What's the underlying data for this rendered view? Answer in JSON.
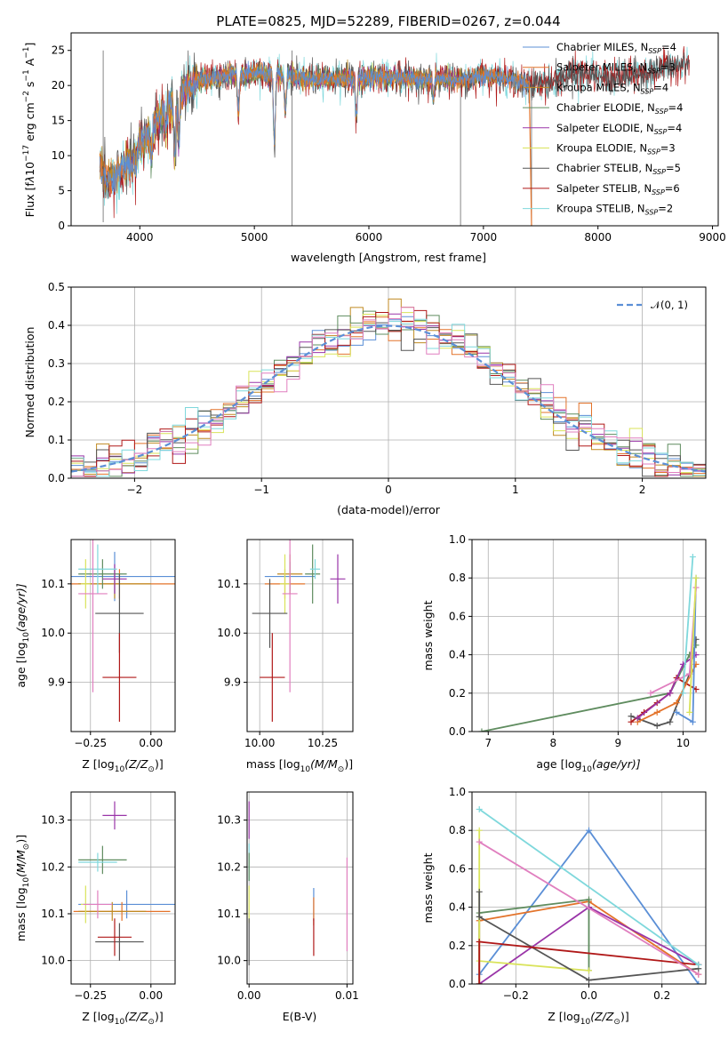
{
  "figure_title": "PLATE=0825, MJD=52289, FIBERID=0267, z=0.044",
  "colors": {
    "chabrier_miles": "#5b8fd6",
    "salpeter_miles": "#e3732a",
    "kroupa_miles": "#c08a22",
    "chabrier_elodie": "#5f8c5f",
    "salpeter_elodie": "#9a35a8",
    "kroupa_elodie": "#d9e35a",
    "chabrier_stelib": "#555555",
    "salpeter_stelib": "#b01818",
    "kroupa_stelib": "#7fd8dc",
    "pink": "#e07fbf",
    "normal_curve": "#5b8fd6"
  },
  "chart_data": [
    {
      "type": "line",
      "panel": "spectrum",
      "title": "PLATE=0825, MJD=52289, FIBERID=0267, z=0.044",
      "xlabel": "wavelength [Angstrom, rest frame]",
      "ylabel_parts": [
        "Flux [f",
        "λ",
        "10",
        "−17",
        " erg cm",
        "−2",
        " s",
        "−1",
        " A",
        "−1",
        "]"
      ],
      "xlim": [
        3400,
        9050
      ],
      "ylim": [
        0,
        27.5
      ],
      "xticks": [
        4000,
        5000,
        6000,
        7000,
        8000,
        9000
      ],
      "yticks": [
        0,
        5,
        10,
        15,
        20,
        25
      ],
      "grid": false,
      "legend_position": "top-right",
      "envelope_x": [
        3650,
        3700,
        3800,
        3900,
        4000,
        4100,
        4200,
        4300,
        4400,
        4500,
        4600,
        4800,
        5000,
        5200,
        5400,
        5600,
        5800,
        6000,
        6200,
        6400,
        6600,
        6800,
        7000,
        7200,
        7400,
        7600,
        7800,
        8000,
        8200,
        8400,
        8600,
        8800
      ],
      "envelope_y": [
        9,
        6.5,
        7,
        9,
        11.5,
        13.5,
        16,
        17.5,
        19.5,
        20.5,
        21,
        21.5,
        21.8,
        21.5,
        21,
        20.8,
        21,
        21.2,
        21.2,
        21,
        21,
        20.8,
        21.5,
        21,
        20.3,
        20.5,
        22,
        21.2,
        21,
        21.8,
        22.5,
        23.2
      ],
      "absorption_lines": [
        [
          3933,
          8
        ],
        [
          3968,
          8.5
        ],
        [
          4102,
          10
        ],
        [
          4227,
          14
        ],
        [
          4305,
          10
        ],
        [
          4340,
          12
        ],
        [
          4861,
          16
        ],
        [
          5175,
          12
        ],
        [
          5270,
          16
        ],
        [
          5890,
          15.5
        ],
        [
          6563,
          18
        ]
      ],
      "glitches": [
        [
          3680,
          25,
          0.5
        ],
        [
          5330,
          0,
          25
        ],
        [
          6800,
          0,
          20
        ],
        [
          7420,
          0,
          18
        ]
      ],
      "series": [
        {
          "name": "Chabrier MILES",
          "nssp": "4",
          "color": "#5b8fd6",
          "xmin": 3650,
          "xmax": 7400
        },
        {
          "name": "Salpeter MILES",
          "nssp": "3",
          "color": "#e3732a",
          "xmin": 3650,
          "xmax": 7400
        },
        {
          "name": "Kroupa MILES",
          "nssp": "4",
          "color": "#c08a22",
          "xmin": 3650,
          "xmax": 7400
        },
        {
          "name": "Chabrier ELODIE",
          "nssp": "4",
          "color": "#5f8c5f",
          "xmin": 3900,
          "xmax": 6800
        },
        {
          "name": "Salpeter ELODIE",
          "nssp": "4",
          "color": "#9a35a8",
          "xmin": 3900,
          "xmax": 6800
        },
        {
          "name": "Kroupa ELODIE",
          "nssp": "3",
          "color": "#d9e35a",
          "xmin": 3900,
          "xmax": 6800
        },
        {
          "name": "Chabrier STELIB",
          "nssp": "5",
          "color": "#555555",
          "xmin": 3650,
          "xmax": 8800
        },
        {
          "name": "Salpeter STELIB",
          "nssp": "6",
          "color": "#b01818",
          "xmin": 3650,
          "xmax": 8800
        },
        {
          "name": "Kroupa STELIB",
          "nssp": "2",
          "color": "#7fd8dc",
          "xmin": 3650,
          "xmax": 8800
        }
      ]
    },
    {
      "type": "histogram",
      "panel": "residuals",
      "xlabel": "(data-model)/error",
      "ylabel": "Normed distribution",
      "xlim": [
        -2.5,
        2.5
      ],
      "ylim": [
        0,
        0.5
      ],
      "xticks": [
        -2,
        -1,
        0,
        1,
        2
      ],
      "yticks": [
        0.0,
        0.1,
        0.2,
        0.3,
        0.4,
        0.5
      ],
      "grid": true,
      "legend_position": "top-right",
      "legend_label": "𝒩(0, 1)",
      "bin_width": 0.1,
      "series_colors": [
        "#5b8fd6",
        "#e3732a",
        "#c08a22",
        "#5f8c5f",
        "#9a35a8",
        "#d9e35a",
        "#555555",
        "#b01818",
        "#7fd8dc",
        "#e07fbf"
      ]
    },
    {
      "type": "scatter",
      "panel": "age_vs_z",
      "xlabel_parts": [
        "Z [log",
        "10",
        "(Z/Z",
        "⊙",
        ")]"
      ],
      "ylabel_parts": [
        "age  [log",
        "10",
        "(age/yr)]"
      ],
      "xlim": [
        -0.33,
        0.1
      ],
      "ylim": [
        9.8,
        10.19
      ],
      "xticks": [
        -0.25,
        0.0
      ],
      "yticks": [
        9.9,
        10.0,
        10.1
      ],
      "grid": true,
      "points": [
        {
          "x": -0.15,
          "y": 10.115,
          "xerr": 0.25,
          "yerr": 0.05,
          "color": "#5b8fd6"
        },
        {
          "x": -0.13,
          "y": 10.1,
          "xerr": 0.23,
          "yerr": 0.03,
          "color": "#e3732a"
        },
        {
          "x": -0.15,
          "y": 10.1,
          "xerr": 0.15,
          "yerr": 0.03,
          "color": "#c08a22"
        },
        {
          "x": -0.2,
          "y": 10.12,
          "xerr": 0.1,
          "yerr": 0.03,
          "color": "#5f8c5f"
        },
        {
          "x": -0.15,
          "y": 10.11,
          "xerr": 0.05,
          "yerr": 0.03,
          "color": "#9a35a8"
        },
        {
          "x": -0.27,
          "y": 10.1,
          "xerr": 0.02,
          "yerr": 0.05,
          "color": "#d9e35a"
        },
        {
          "x": -0.13,
          "y": 10.04,
          "xerr": 0.1,
          "yerr": 0.08,
          "color": "#555555"
        },
        {
          "x": -0.13,
          "y": 9.91,
          "xerr": 0.07,
          "yerr": 0.09,
          "color": "#b01818"
        },
        {
          "x": -0.22,
          "y": 10.13,
          "xerr": 0.08,
          "yerr": 0.05,
          "color": "#7fd8dc"
        },
        {
          "x": -0.24,
          "y": 10.08,
          "xerr": 0.06,
          "yerr": 0.2,
          "color": "#e07fbf"
        }
      ]
    },
    {
      "type": "scatter",
      "panel": "age_vs_mass",
      "xlabel_parts": [
        "mass [log",
        "10",
        "(M/M",
        "⊙",
        ")]"
      ],
      "xlim": [
        9.95,
        10.37
      ],
      "ylim": [
        9.8,
        10.19
      ],
      "xticks": [
        10.0,
        10.25
      ],
      "yticks": [
        9.9,
        10.0,
        10.1
      ],
      "grid": true,
      "points": [
        {
          "x": 10.12,
          "y": 10.115,
          "xerr": 0.1,
          "yerr": 0.03,
          "color": "#5b8fd6"
        },
        {
          "x": 10.1,
          "y": 10.1,
          "xerr": 0.08,
          "yerr": 0.03,
          "color": "#e3732a"
        },
        {
          "x": 10.12,
          "y": 10.12,
          "xerr": 0.05,
          "yerr": 0.04,
          "color": "#c08a22"
        },
        {
          "x": 10.21,
          "y": 10.12,
          "xerr": 0.03,
          "yerr": 0.06,
          "color": "#5f8c5f"
        },
        {
          "x": 10.31,
          "y": 10.11,
          "xerr": 0.03,
          "yerr": 0.05,
          "color": "#9a35a8"
        },
        {
          "x": 10.1,
          "y": 10.1,
          "xerr": 0.02,
          "yerr": 0.06,
          "color": "#d9e35a"
        },
        {
          "x": 10.04,
          "y": 10.04,
          "xerr": 0.07,
          "yerr": 0.07,
          "color": "#555555"
        },
        {
          "x": 10.05,
          "y": 9.91,
          "xerr": 0.05,
          "yerr": 0.09,
          "color": "#b01818"
        },
        {
          "x": 10.22,
          "y": 10.13,
          "xerr": 0.02,
          "yerr": 0.02,
          "color": "#7fd8dc"
        },
        {
          "x": 10.12,
          "y": 10.08,
          "xerr": 0.03,
          "yerr": 0.2,
          "color": "#e07fbf"
        }
      ]
    },
    {
      "type": "line",
      "panel": "mass_weight_vs_age",
      "xlabel_parts": [
        "age  [log",
        "10",
        "(age/yr)]"
      ],
      "ylabel": "mass weight",
      "xlim": [
        6.75,
        10.35
      ],
      "ylim": [
        0,
        1.0
      ],
      "xticks": [
        7,
        8,
        9,
        10
      ],
      "yticks": [
        0.0,
        0.2,
        0.4,
        0.6,
        0.8,
        1.0
      ],
      "grid": true,
      "series": [
        {
          "color": "#5f8c5f",
          "x": [
            6.9,
            9.8,
            10.1,
            10.2
          ],
          "y": [
            0.0,
            0.2,
            0.4,
            0.45
          ]
        },
        {
          "color": "#b01818",
          "x": [
            9.2,
            9.4,
            9.6,
            9.8,
            9.9,
            10.2
          ],
          "y": [
            0.05,
            0.1,
            0.15,
            0.2,
            0.28,
            0.22
          ]
        },
        {
          "color": "#555555",
          "x": [
            9.2,
            9.6,
            9.8,
            10.1,
            10.2
          ],
          "y": [
            0.08,
            0.03,
            0.05,
            0.3,
            0.48
          ]
        },
        {
          "color": "#e3732a",
          "x": [
            9.3,
            9.6,
            9.9,
            10.2
          ],
          "y": [
            0.05,
            0.1,
            0.15,
            0.35
          ]
        },
        {
          "color": "#9a35a8",
          "x": [
            9.3,
            9.8,
            10.0,
            10.2
          ],
          "y": [
            0.07,
            0.2,
            0.35,
            0.4
          ]
        },
        {
          "color": "#5b8fd6",
          "x": [
            9.9,
            10.15,
            10.2
          ],
          "y": [
            0.1,
            0.05,
            0.8
          ]
        },
        {
          "color": "#e07fbf",
          "x": [
            9.5,
            10.1,
            10.2
          ],
          "y": [
            0.2,
            0.3,
            0.75
          ]
        },
        {
          "color": "#d9e35a",
          "x": [
            10.1,
            10.2
          ],
          "y": [
            0.1,
            0.8
          ]
        },
        {
          "color": "#7fd8dc",
          "x": [
            10.0,
            10.15
          ],
          "y": [
            0.2,
            0.91
          ]
        }
      ]
    },
    {
      "type": "scatter",
      "panel": "mass_vs_z",
      "xlabel_parts": [
        "Z [log",
        "10",
        "(Z/Z",
        "⊙",
        ")]"
      ],
      "ylabel_parts": [
        "mass [log",
        "10",
        "(M/M",
        "⊙",
        ")]"
      ],
      "xlim": [
        -0.33,
        0.1
      ],
      "ylim": [
        9.95,
        10.36
      ],
      "xticks": [
        -0.25,
        0.0
      ],
      "yticks": [
        10.0,
        10.1,
        10.2,
        10.3
      ],
      "grid": true,
      "points": [
        {
          "x": -0.1,
          "y": 10.12,
          "xerr": 0.2,
          "yerr": 0.03,
          "color": "#5b8fd6"
        },
        {
          "x": -0.12,
          "y": 10.105,
          "xerr": 0.2,
          "yerr": 0.02,
          "color": "#e3732a"
        },
        {
          "x": -0.16,
          "y": 10.105,
          "xerr": 0.14,
          "yerr": 0.02,
          "color": "#c08a22"
        },
        {
          "x": -0.2,
          "y": 10.215,
          "xerr": 0.1,
          "yerr": 0.03,
          "color": "#5f8c5f"
        },
        {
          "x": -0.15,
          "y": 10.31,
          "xerr": 0.05,
          "yerr": 0.03,
          "color": "#9a35a8"
        },
        {
          "x": -0.27,
          "y": 10.12,
          "xerr": 0.02,
          "yerr": 0.04,
          "color": "#d9e35a"
        },
        {
          "x": -0.13,
          "y": 10.04,
          "xerr": 0.1,
          "yerr": 0.04,
          "color": "#555555"
        },
        {
          "x": -0.15,
          "y": 10.05,
          "xerr": 0.07,
          "yerr": 0.04,
          "color": "#b01818"
        },
        {
          "x": -0.22,
          "y": 10.21,
          "xerr": 0.08,
          "yerr": 0.02,
          "color": "#7fd8dc"
        },
        {
          "x": -0.22,
          "y": 10.12,
          "xerr": 0.06,
          "yerr": 0.03,
          "color": "#e07fbf"
        }
      ]
    },
    {
      "type": "scatter",
      "panel": "mass_vs_ebv",
      "xlabel": "E(B-V)",
      "xlim": [
        -0.0002,
        0.0106
      ],
      "ylim": [
        9.95,
        10.36
      ],
      "xticks": [
        0.0,
        0.01
      ],
      "xticklabels": [
        "0.00",
        "0.01"
      ],
      "yticks": [
        10.0,
        10.1,
        10.2,
        10.3
      ],
      "grid": true,
      "points": [
        {
          "x": 0.0,
          "y": 10.3,
          "yerr": 0.04,
          "color": "#9a35a8"
        },
        {
          "x": 0.0,
          "y": 10.21,
          "yerr": 0.04,
          "color": "#7fd8dc"
        },
        {
          "x": 0.0,
          "y": 10.2,
          "yerr": 0.03,
          "color": "#5f8c5f"
        },
        {
          "x": 0.0,
          "y": 10.12,
          "yerr": 0.04,
          "color": "#d9e35a"
        },
        {
          "x": 0.0,
          "y": 10.04,
          "yerr": 0.05,
          "color": "#555555"
        },
        {
          "x": 0.0066,
          "y": 10.12,
          "yerr": 0.035,
          "color": "#5b8fd6"
        },
        {
          "x": 0.0066,
          "y": 10.105,
          "yerr": 0.03,
          "color": "#e3732a"
        },
        {
          "x": 0.0066,
          "y": 10.05,
          "yerr": 0.04,
          "color": "#b01818"
        },
        {
          "x": 0.01,
          "y": 10.12,
          "yerr": 0.1,
          "color": "#e07fbf"
        }
      ]
    },
    {
      "type": "line",
      "panel": "mass_weight_vs_z",
      "xlabel_parts": [
        "Z [log",
        "10",
        "(Z/Z",
        "⊙",
        ")]"
      ],
      "ylabel": "mass weight",
      "xlim": [
        -0.32,
        0.32
      ],
      "ylim": [
        0,
        1.0
      ],
      "xticks": [
        -0.2,
        0.0,
        0.2
      ],
      "yticks": [
        0.0,
        0.2,
        0.4,
        0.6,
        0.8,
        1.0
      ],
      "grid": true,
      "series": [
        {
          "color": "#5b8fd6",
          "x": [
            -0.3,
            0.0,
            0.3
          ],
          "y": [
            0.05,
            0.8,
            0.0
          ]
        },
        {
          "color": "#e3732a",
          "x": [
            -0.3,
            -0.3,
            0.0,
            0.3
          ],
          "y": [
            0.0,
            0.33,
            0.43,
            0.05
          ]
        },
        {
          "color": "#5f8c5f",
          "x": [
            -0.3,
            -0.3,
            0.0,
            0.0
          ],
          "y": [
            0.0,
            0.37,
            0.44,
            0.07
          ]
        },
        {
          "color": "#9a35a8",
          "x": [
            -0.3,
            0.0,
            0.3
          ],
          "y": [
            0.0,
            0.4,
            0.1
          ]
        },
        {
          "color": "#d9e35a",
          "x": [
            -0.3,
            -0.3,
            0.0
          ],
          "y": [
            0.8,
            0.12,
            0.07
          ]
        },
        {
          "color": "#555555",
          "x": [
            -0.3,
            -0.3,
            0.0,
            0.3
          ],
          "y": [
            0.48,
            0.35,
            0.02,
            0.08
          ]
        },
        {
          "color": "#b01818",
          "x": [
            -0.3,
            -0.3,
            0.3
          ],
          "y": [
            0.0,
            0.22,
            0.1
          ]
        },
        {
          "color": "#7fd8dc",
          "x": [
            -0.3,
            0.3
          ],
          "y": [
            0.91,
            0.1
          ]
        },
        {
          "color": "#e07fbf",
          "x": [
            -0.3,
            0.3
          ],
          "y": [
            0.74,
            0.05
          ]
        }
      ]
    }
  ]
}
